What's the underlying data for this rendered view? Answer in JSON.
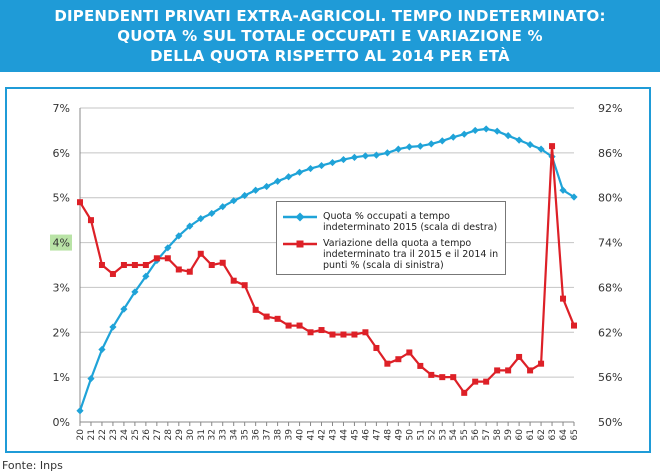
{
  "header": {
    "line1": "DIPENDENTI PRIVATI EXTRA-AGRICOLI. TEMPO INDETERMINATO:",
    "line2": "QUOTA % SUL TOTALE OCCUPATI E VARIAZIONE %",
    "line3": "DELLA QUOTA RISPETTO AL 2014 PER ETÀ"
  },
  "source": "Fonte: Inps",
  "colors": {
    "accent": "#1f9bd7",
    "series_blue": "#1fa3d8",
    "series_red": "#dd2027",
    "highlight": "#b9e3a6"
  },
  "chart_data": {
    "type": "line",
    "x": [
      20,
      21,
      22,
      23,
      24,
      25,
      26,
      27,
      28,
      29,
      30,
      31,
      32,
      33,
      34,
      35,
      36,
      37,
      38,
      39,
      40,
      41,
      42,
      43,
      44,
      45,
      46,
      47,
      48,
      49,
      50,
      51,
      52,
      53,
      54,
      55,
      56,
      57,
      58,
      59,
      60,
      61,
      62,
      63,
      64,
      65
    ],
    "x_tick_labels": [
      "20",
      "21",
      "22",
      "23",
      "24",
      "25",
      "26",
      "27",
      "28",
      "29",
      "30",
      "31",
      "32",
      "33",
      "34",
      "35",
      "36",
      "37",
      "38",
      "39",
      "40",
      "41",
      "42",
      "43",
      "44",
      "45",
      "46",
      "47",
      "48",
      "49",
      "50",
      "51",
      "52",
      "53",
      "54",
      "55",
      "56",
      "57",
      "58",
      "59",
      "60",
      "61",
      "62",
      "63",
      "64",
      "65"
    ],
    "y_left": {
      "ylim": [
        0,
        7
      ],
      "ticks": [
        "0%",
        "1%",
        "2%",
        "3%",
        "4%",
        "5%",
        "6%",
        "7%"
      ],
      "highlight_tick": "4%"
    },
    "y_right": {
      "ylim": [
        50,
        92
      ],
      "ticks": [
        "50%",
        "56%",
        "62%",
        "68%",
        "74%",
        "80%",
        "86%",
        "92%"
      ]
    },
    "series": [
      {
        "name": "Quota % occupati a tempo indeterminato 2015 (scala di destra)",
        "axis": "right",
        "marker": "diamond",
        "values": [
          51.5,
          55.8,
          59.7,
          62.7,
          65.1,
          67.4,
          69.5,
          71.6,
          73.3,
          74.9,
          76.2,
          77.2,
          77.9,
          78.8,
          79.6,
          80.3,
          81.0,
          81.5,
          82.2,
          82.8,
          83.4,
          83.9,
          84.3,
          84.7,
          85.1,
          85.4,
          85.6,
          85.7,
          86.0,
          86.5,
          86.8,
          86.9,
          87.2,
          87.6,
          88.1,
          88.5,
          89.0,
          89.2,
          88.9,
          88.3,
          87.7,
          87.1,
          86.5,
          85.5,
          81.0,
          80.1
        ]
      },
      {
        "name": "Variazione della quota a tempo indeterminato tra il 2015 e il 2014 in punti % (scala di sinistra)",
        "axis": "left",
        "marker": "square",
        "values": [
          4.9,
          4.5,
          3.5,
          3.3,
          3.5,
          3.5,
          3.5,
          3.65,
          3.65,
          3.4,
          3.35,
          3.75,
          3.5,
          3.55,
          3.15,
          3.05,
          2.5,
          2.35,
          2.3,
          2.15,
          2.15,
          2.0,
          2.05,
          1.95,
          1.95,
          1.95,
          2.0,
          1.65,
          1.3,
          1.4,
          1.55,
          1.25,
          1.05,
          1.0,
          1.0,
          0.65,
          0.9,
          0.9,
          1.15,
          1.15,
          1.45,
          1.15,
          1.3,
          6.15,
          2.75,
          2.15
        ]
      }
    ],
    "legend_position": "center-right",
    "grid": "horizontal"
  }
}
